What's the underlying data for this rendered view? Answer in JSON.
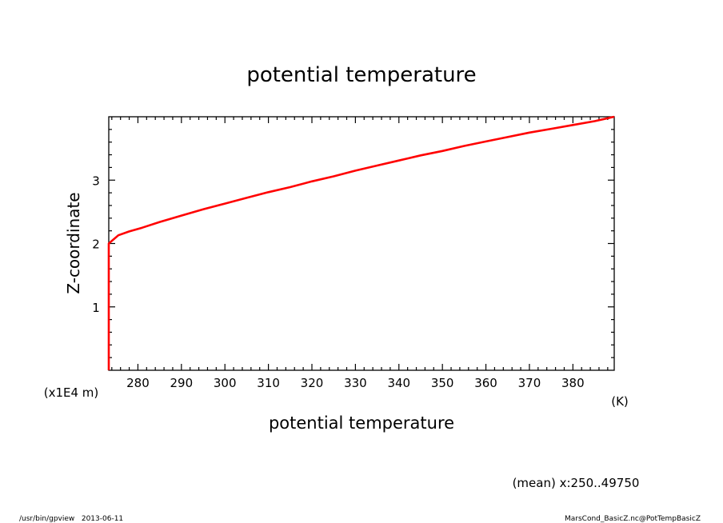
{
  "chart_data": {
    "type": "line",
    "title": "potential temperature",
    "xlabel": "potential temperature",
    "x_unit": "(K)",
    "ylabel": "Z-coordinate",
    "y_unit": "(x1E4 m)",
    "xlim": [
      273.3,
      389.5
    ],
    "ylim": [
      0,
      4
    ],
    "x_ticks": [
      280,
      290,
      300,
      310,
      320,
      330,
      340,
      350,
      360,
      370,
      380
    ],
    "x_tick_labels": [
      "280",
      "290",
      "300",
      "310",
      "320",
      "330",
      "340",
      "350",
      "360",
      "370",
      "380"
    ],
    "y_ticks": [
      1,
      2,
      3
    ],
    "y_tick_labels": [
      "1",
      "2",
      "3"
    ],
    "grid": false,
    "series": [
      {
        "color": "#ff0000",
        "x": [
          273.3,
          273.3,
          273.3,
          273.3,
          273.3,
          273.3,
          275.5,
          278.0,
          281.0,
          285.0,
          290.0,
          295.0,
          300.0,
          305.0,
          310.0,
          315.0,
          320.0,
          325.0,
          330.0,
          335.0,
          340.0,
          345.0,
          350.0,
          355.0,
          360.0,
          365.0,
          370.0,
          375.0,
          380.0,
          385.0,
          389.5
        ],
        "y": [
          0.0,
          0.5,
          1.0,
          1.5,
          1.95,
          2.0,
          2.13,
          2.19,
          2.25,
          2.34,
          2.44,
          2.54,
          2.63,
          2.72,
          2.81,
          2.89,
          2.98,
          3.06,
          3.15,
          3.23,
          3.31,
          3.39,
          3.46,
          3.54,
          3.61,
          3.68,
          3.75,
          3.81,
          3.87,
          3.93,
          4.0
        ]
      }
    ]
  },
  "annotation": "(mean) x:250..49750",
  "footer_left": "/usr/bin/gpview   2013-06-11",
  "footer_right": "MarsCond_BasicZ.nc@PotTempBasicZ"
}
